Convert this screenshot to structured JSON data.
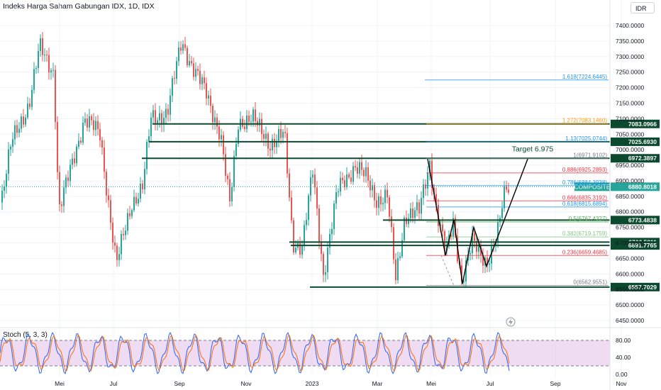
{
  "header": {
    "title": "Indeks Harga Saham Gabungan IDX, 1D, IDX",
    "currency": "IDR"
  },
  "indicator": {
    "label": "Stoch (5, 3, 3)"
  },
  "colors": {
    "up": "#26a69a",
    "down": "#ef5350",
    "level_line": "#0c4a2f",
    "fib_blue": "#2196f3",
    "fib_red": "#f23645",
    "fib_teal": "#089981",
    "stoch_k": "#2962ff",
    "stoch_d": "#ff6d00",
    "stoch_band": "#e1bee7"
  },
  "chart_data": [
    {
      "type": "candlestick",
      "title": "Indeks Harga Saham Gabungan IDX, 1D, IDX",
      "x_ticks": [
        "Mei",
        "Jul",
        "Sep",
        "Nov",
        "2023",
        "Mar",
        "Mei",
        "Jul",
        "Sep",
        "Nov"
      ],
      "y_ticks": [
        7400,
        7350,
        7300,
        7250,
        7200,
        7150,
        7100,
        7050,
        7000,
        6950,
        6900,
        6850,
        6800,
        6750,
        6700,
        6650,
        6600,
        6550,
        6500,
        6450
      ],
      "y_tick_labels": [
        "7400.0000",
        "7350.0000",
        "7300.0000",
        "7250.0000",
        "7200.0000",
        "7150.0000",
        "7100.0000",
        "7050.0000",
        "7000.0000",
        "6950.0000",
        "6900.0000",
        "6850.0000",
        "6800.0000",
        "6750.0000",
        "6700.0000",
        "6650.0000",
        "6600.0000",
        "6550.0000",
        "6500.0000",
        "6450.0000"
      ],
      "ylim": [
        6440,
        7430
      ],
      "key_levels": [
        {
          "value": 7083.0966,
          "label": "7083.0966"
        },
        {
          "value": 7025.693,
          "label": "7025.6930"
        },
        {
          "value": 6972.3897,
          "label": "6972.3897"
        },
        {
          "value": 6773.4838,
          "label": "6773.4838"
        },
        {
          "value": 6702.5811,
          "label": "6702.5811"
        },
        {
          "value": 6691.7765,
          "label": "6691.7765"
        },
        {
          "value": 6557.7029,
          "label": "6557.7029"
        }
      ],
      "current_price": {
        "value": 6880.8018,
        "symbol": "COMPOSITE",
        "label": "6880.8018"
      },
      "fib_levels": [
        {
          "ratio": "1.618",
          "value": 7224.6445,
          "label": "1.618(7224.6445)",
          "color": "#2196f3"
        },
        {
          "ratio": "1.272",
          "value": 7083.146,
          "label": "1.272(7083.1460)",
          "color": "#ff9800"
        },
        {
          "ratio": "1.13",
          "value": 7025.0744,
          "label": "1.13(7025.0744)",
          "color": "#2196f3"
        },
        {
          "ratio": "1",
          "value": 6971.9102,
          "label": "1(6971.9102)",
          "color": "#787b86"
        },
        {
          "ratio": "0.886",
          "value": 6925.2893,
          "label": "0.886(6925.2893)",
          "color": "#f23645"
        },
        {
          "ratio": "0.786",
          "value": 6884.3938,
          "label": "0.786(6884.3938)",
          "color": "#2196f3"
        },
        {
          "ratio": "0.666",
          "value": 6835.3192,
          "label": "0.666(6835.3192)",
          "color": "#f23645"
        },
        {
          "ratio": "0.618",
          "value": 6815.6894,
          "label": "0.618(6815.6894)",
          "color": "#2196f3"
        },
        {
          "ratio": "0.5",
          "value": 6767.4327,
          "label": "0.5(6767.4327)",
          "color": "#4caf50"
        },
        {
          "ratio": "0.382",
          "value": 6719.1759,
          "label": "0.382(6719.1759)",
          "color": "#81c784"
        },
        {
          "ratio": "0.236",
          "value": 6659.4685,
          "label": "0.236(6659.4685)",
          "color": "#f23645"
        },
        {
          "ratio": "0",
          "value": 6562.9551,
          "label": "0(6562.9551)",
          "color": "#787b86"
        }
      ],
      "annotation": {
        "text": "Target 6.975"
      }
    },
    {
      "type": "line",
      "title": "Stoch (5, 3, 3)",
      "y_ticks": [
        80,
        40,
        0
      ],
      "y_tick_labels": [
        "80.00",
        "40.00",
        "0.00"
      ],
      "band": [
        20,
        80
      ],
      "ylim": [
        -5,
        100
      ]
    }
  ]
}
